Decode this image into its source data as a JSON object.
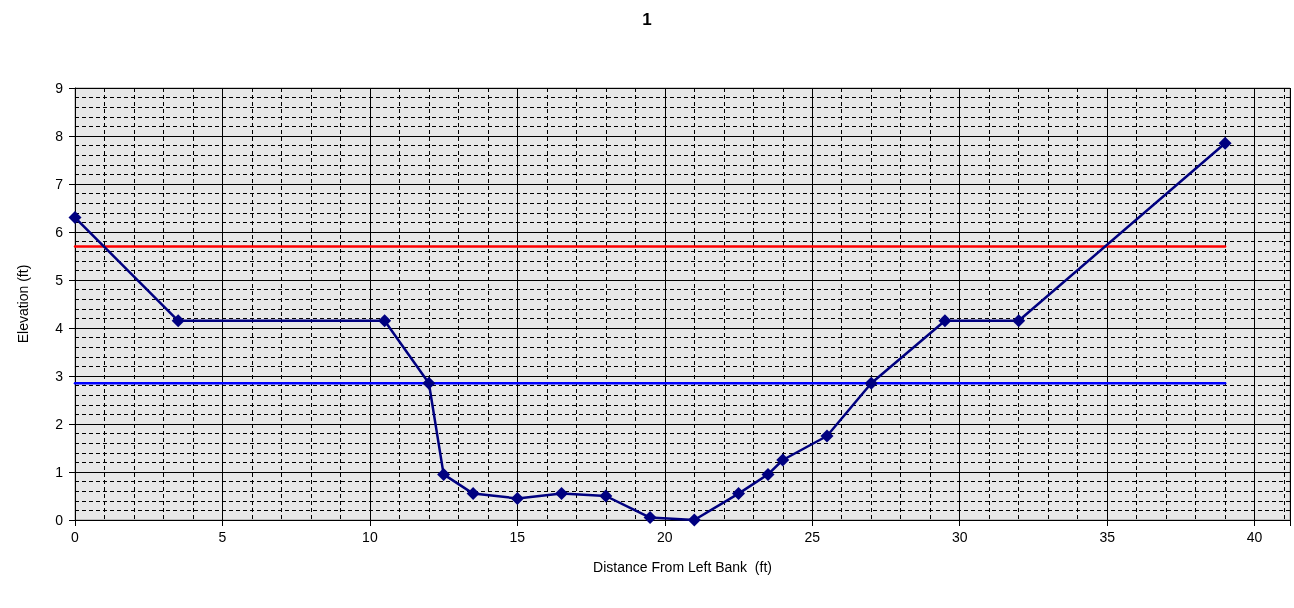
{
  "chart_data": {
    "type": "line",
    "title": "1",
    "xlabel": "Distance From Left Bank  (ft)",
    "ylabel": "Elevation (ft)",
    "xlim": [
      0,
      41.2
    ],
    "xticks": [
      0,
      5,
      10,
      15,
      20,
      25,
      30,
      35,
      40
    ],
    "ylim": [
      0,
      9
    ],
    "yticks": [
      0,
      1,
      2,
      3,
      4,
      5,
      6,
      7,
      8,
      9
    ],
    "grid": true,
    "legend": false,
    "series": [
      {
        "color": "#000080",
        "marker": "diamond",
        "x": [
          0,
          3.5,
          10.5,
          12,
          12.5,
          13.5,
          15,
          16.5,
          18,
          19.5,
          21,
          22.5,
          23.5,
          24,
          25.5,
          27,
          29.5,
          32,
          39
        ],
        "values": [
          6.3,
          4.15,
          4.15,
          2.85,
          0.95,
          0.55,
          0.45,
          0.55,
          0.5,
          0.05,
          0,
          0.55,
          0.95,
          1.25,
          1.75,
          2.85,
          4.15,
          4.15,
          7.85
        ]
      },
      {
        "color": "#ff0000",
        "marker": "none",
        "x": [
          0,
          39
        ],
        "values": [
          5.7,
          5.7
        ]
      },
      {
        "color": "#0000ff",
        "marker": "none",
        "x": [
          0,
          39
        ],
        "values": [
          2.85,
          2.85
        ]
      }
    ]
  }
}
